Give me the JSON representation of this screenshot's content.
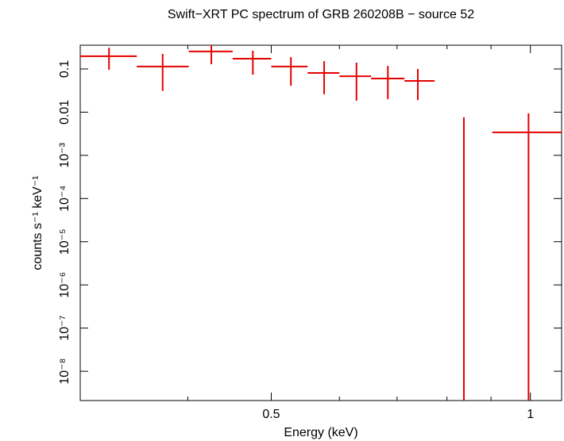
{
  "chart_data": {
    "type": "errorbar",
    "title": "Swift−XRT PC spectrum of GRB 260208B − source 52",
    "x_label": "Energy (keV)",
    "y_label": "counts s⁻¹ keV⁻¹",
    "x_log": true,
    "y_log": true,
    "color": "#e60000",
    "xlim": [
      0.3,
      1.087
    ],
    "ylim": [
      2.1e-09,
      0.355
    ],
    "xticks": [
      0.5,
      1
    ],
    "minor_xticks": [
      0.4,
      0.6,
      0.7,
      0.8,
      0.9
    ],
    "yticks": [
      {
        "value": 0.1,
        "label": "0.1"
      },
      {
        "value": 0.01,
        "label": "0.01"
      },
      {
        "value": 0.001,
        "label": "10⁻³"
      },
      {
        "value": 0.0001,
        "label": "10⁻⁴"
      },
      {
        "value": 1e-05,
        "label": "10⁻⁵"
      },
      {
        "value": 1e-06,
        "label": "10⁻⁶"
      },
      {
        "value": 1e-07,
        "label": "10⁻⁷"
      },
      {
        "value": 1e-08,
        "label": "10⁻⁸"
      }
    ],
    "x": [
      0.324,
      0.374,
      0.426,
      0.476,
      0.527,
      0.576,
      0.628,
      0.683,
      0.74,
      0.837,
      0.995
    ],
    "xlo": [
      0.3,
      0.349,
      0.401,
      0.451,
      0.5,
      0.551,
      0.6,
      0.653,
      0.714,
      null,
      0.903
    ],
    "xhi": [
      0.349,
      0.401,
      0.451,
      0.5,
      0.551,
      0.6,
      0.653,
      0.714,
      0.774,
      null,
      1.087
    ],
    "y": [
      0.197,
      0.114,
      0.254,
      0.173,
      0.114,
      0.081,
      0.068,
      0.06,
      0.053,
      null,
      0.0034
    ],
    "ylo": [
      0.096,
      0.031,
      0.129,
      0.074,
      0.041,
      0.026,
      0.0185,
      0.02,
      0.019,
      null,
      null
    ],
    "yhi": [
      0.31,
      0.223,
      0.355,
      0.264,
      0.188,
      0.152,
      0.14,
      0.118,
      0.1,
      0.0076,
      0.0094
    ]
  }
}
